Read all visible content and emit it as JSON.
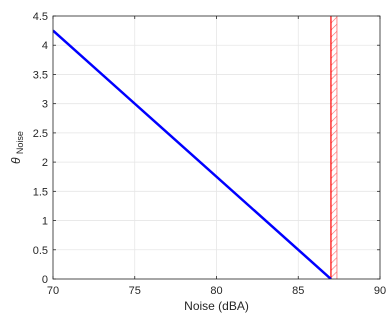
{
  "chart_data": {
    "type": "line",
    "xlabel": "Noise (dBA)",
    "ylabel_main": "θ",
    "ylabel_sub": "Noise",
    "xlim": [
      70,
      90
    ],
    "ylim": [
      0,
      4.5
    ],
    "xticks": [
      70,
      75,
      80,
      85,
      90
    ],
    "yticks": [
      0,
      0.5,
      1,
      1.5,
      2,
      2.5,
      3,
      3.5,
      4,
      4.5
    ],
    "xtick_labels": [
      "70",
      "75",
      "80",
      "85",
      "90"
    ],
    "ytick_labels": [
      "0",
      "0.5",
      "1",
      "1.5",
      "2",
      "2.5",
      "3",
      "3.5",
      "4",
      "4.5"
    ],
    "grid": true,
    "series": [
      {
        "x": [
          70,
          87
        ],
        "y": [
          4.25,
          0
        ],
        "color": "#0000ff"
      }
    ],
    "threshold": {
      "x": 87,
      "color": "#ff0000",
      "hatch_color": "#ff6666"
    }
  }
}
